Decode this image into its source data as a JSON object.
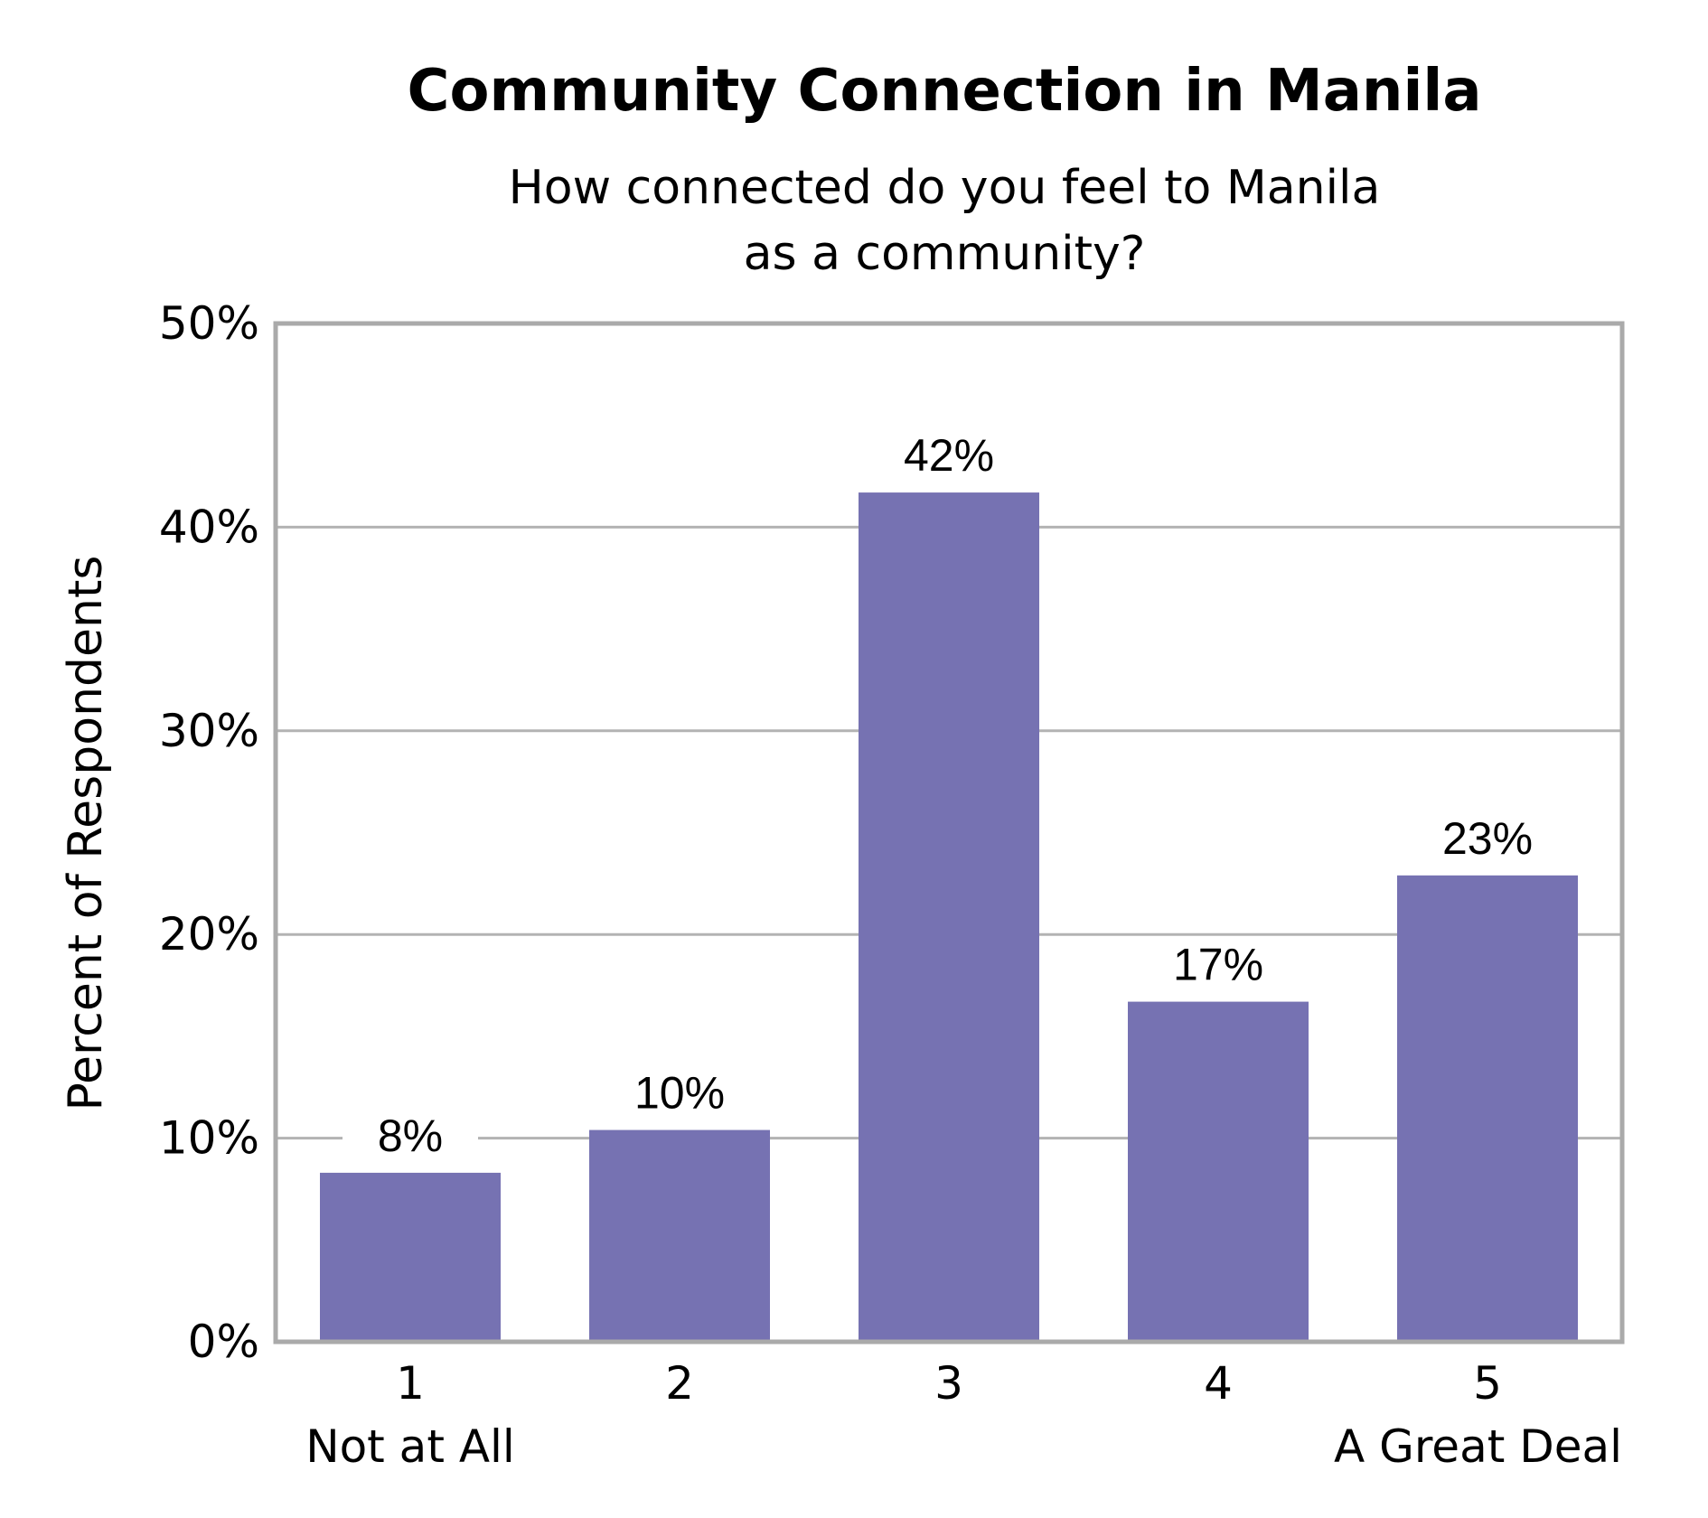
{
  "chart_data": {
    "type": "bar",
    "title": "Community Connection in Manila",
    "subtitle": [
      "How connected do you feel to Manila",
      "as a community?"
    ],
    "ylabel": "Percent of Respondents",
    "xlabel": "",
    "ylim": [
      0,
      50
    ],
    "yticks": [
      0,
      10,
      20,
      30,
      40,
      50
    ],
    "ytick_labels": [
      "0%",
      "10%",
      "20%",
      "30%",
      "40%",
      "50%"
    ],
    "categories": [
      "1",
      "2",
      "3",
      "4",
      "5"
    ],
    "category_sublabels": [
      "Not at All",
      "",
      "",
      "",
      "A Great Deal"
    ],
    "values": [
      8.3,
      10.4,
      41.7,
      16.7,
      22.9
    ],
    "value_labels": [
      "8%",
      "10%",
      "42%",
      "17%",
      "23%"
    ],
    "grid": true,
    "legend": "none",
    "colors": {
      "bar": "#7672b2",
      "grid": "#b3b3b3",
      "frame": "#aaaaaa"
    }
  }
}
